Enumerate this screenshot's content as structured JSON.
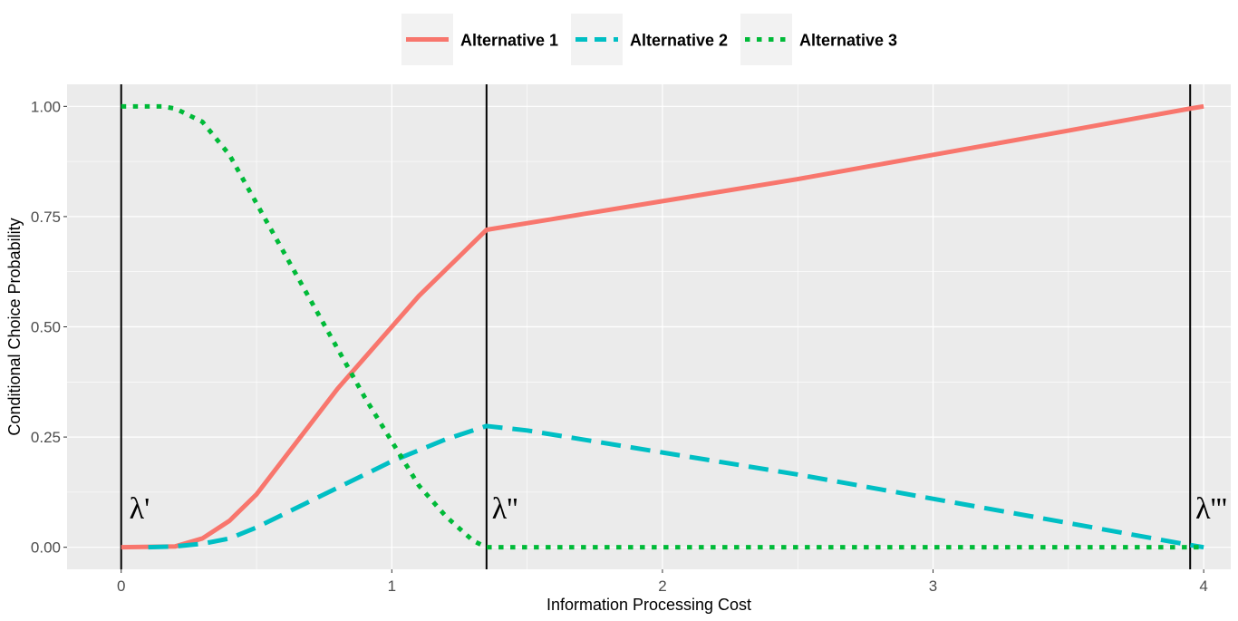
{
  "chart_data": {
    "type": "line",
    "xlabel": "Information Processing Cost",
    "ylabel": "Conditional Choice Probability",
    "xlim": [
      -0.2,
      4.1
    ],
    "ylim": [
      -0.05,
      1.05
    ],
    "x_ticks": [
      0,
      1,
      2,
      3,
      4
    ],
    "x_tick_labels": [
      "0",
      "1",
      "2",
      "3",
      "4"
    ],
    "y_ticks": [
      0,
      0.25,
      0.5,
      0.75,
      1
    ],
    "y_tick_labels": [
      "0.00",
      "0.25",
      "0.50",
      "0.75",
      "1.00"
    ],
    "grid": true,
    "legend_position": "top",
    "series": [
      {
        "name": "Alternative 1",
        "color": "#F8766D",
        "linetype": "solid",
        "x": [
          0,
          0.2,
          0.3,
          0.4,
          0.5,
          0.6,
          0.7,
          0.8,
          0.9,
          1.0,
          1.1,
          1.2,
          1.3,
          1.35,
          1.5,
          2.0,
          2.5,
          3.0,
          3.5,
          3.95,
          4.0
        ],
        "y": [
          0,
          0.002,
          0.02,
          0.06,
          0.12,
          0.2,
          0.28,
          0.36,
          0.43,
          0.5,
          0.57,
          0.63,
          0.69,
          0.72,
          0.735,
          0.785,
          0.835,
          0.89,
          0.945,
          0.995,
          1.0
        ]
      },
      {
        "name": "Alternative 2",
        "color": "#00BFC4",
        "linetype": "dashed",
        "x": [
          0.1,
          0.2,
          0.3,
          0.4,
          0.5,
          0.6,
          0.7,
          0.8,
          0.9,
          1.0,
          1.1,
          1.2,
          1.3,
          1.35,
          1.5,
          2.0,
          2.5,
          3.0,
          3.5,
          3.95,
          4.0
        ],
        "y": [
          0,
          0.002,
          0.008,
          0.02,
          0.045,
          0.075,
          0.105,
          0.135,
          0.165,
          0.195,
          0.22,
          0.245,
          0.265,
          0.275,
          0.265,
          0.215,
          0.165,
          0.11,
          0.055,
          0.005,
          0
        ]
      },
      {
        "name": "Alternative 3",
        "color": "#00BA38",
        "linetype": "dotted",
        "x": [
          0,
          0.15,
          0.2,
          0.3,
          0.4,
          0.5,
          0.6,
          0.7,
          0.8,
          0.9,
          1.0,
          1.1,
          1.2,
          1.3,
          1.35,
          1.5,
          2.0,
          2.5,
          3.0,
          3.5,
          4.0
        ],
        "y": [
          1,
          1,
          0.995,
          0.965,
          0.89,
          0.78,
          0.67,
          0.56,
          0.45,
          0.34,
          0.24,
          0.14,
          0.07,
          0.015,
          0,
          0,
          0,
          0,
          0,
          0,
          0
        ]
      }
    ],
    "vlines": [
      0,
      1.35,
      3.95
    ],
    "annotations": [
      {
        "text": "λ'",
        "x": 0.03,
        "y": 0.065
      },
      {
        "text": "λ''",
        "x": 1.37,
        "y": 0.065
      },
      {
        "text": "λ'''",
        "x": 3.97,
        "y": 0.065
      }
    ]
  }
}
